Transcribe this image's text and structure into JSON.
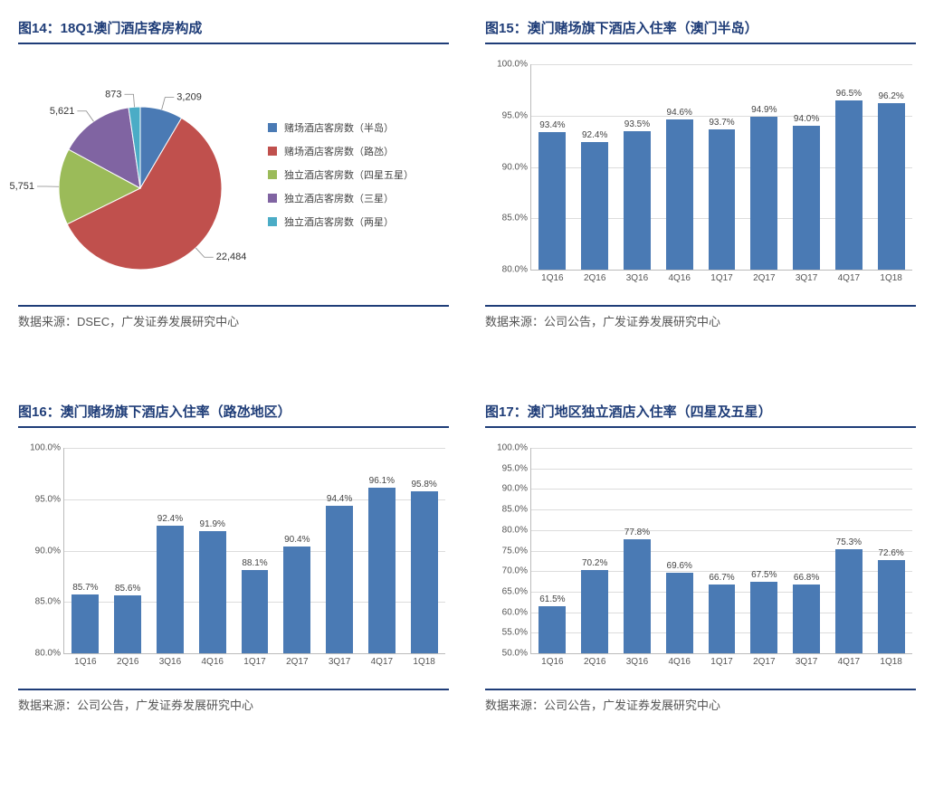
{
  "panels": {
    "p14": {
      "title": "图14：18Q1澳门酒店客房构成",
      "source": "数据来源：DSEC，广发证券发展研究中心",
      "pie": {
        "slices": [
          {
            "label": "赌场酒店客房数（半岛）",
            "value": 3209,
            "value_text": "3,209",
            "color": "#4a7ab4"
          },
          {
            "label": "赌场酒店客房数（路氹）",
            "value": 22484,
            "value_text": "22,484",
            "color": "#c0504d"
          },
          {
            "label": "独立酒店客房数（四星五星）",
            "value": 5751,
            "value_text": "5,751",
            "color": "#9bbb59"
          },
          {
            "label": "独立酒店客房数（三星）",
            "value": 5621,
            "value_text": "5,621",
            "color": "#8064a2"
          },
          {
            "label": "独立酒店客房数（两星）",
            "value": 873,
            "value_text": "873",
            "color": "#4bacc6"
          }
        ],
        "border_color": "#ffffff",
        "label_fontsize": 11
      }
    },
    "p15": {
      "title": "图15：澳门赌场旗下酒店入住率（澳门半岛）",
      "source": "数据来源：公司公告，广发证券发展研究中心",
      "bar": {
        "categories": [
          "1Q16",
          "2Q16",
          "3Q16",
          "4Q16",
          "1Q17",
          "2Q17",
          "3Q17",
          "4Q17",
          "1Q18"
        ],
        "values": [
          93.4,
          92.4,
          93.5,
          94.6,
          93.7,
          94.9,
          94.0,
          96.5,
          96.2
        ],
        "value_texts": [
          "93.4%",
          "92.4%",
          "93.5%",
          "94.6%",
          "93.7%",
          "94.9%",
          "94.0%",
          "96.5%",
          "96.2%"
        ],
        "ymin": 80,
        "ymax": 100,
        "ystep": 5,
        "bar_color": "#4a7ab4",
        "grid_color": "#dcdcdc",
        "axis_color": "#bbbbbb",
        "label_fontsize": 10,
        "y_format_suffix": ".0%"
      }
    },
    "p16": {
      "title": "图16：澳门赌场旗下酒店入住率（路氹地区）",
      "source": "数据来源：公司公告，广发证券发展研究中心",
      "bar": {
        "categories": [
          "1Q16",
          "2Q16",
          "3Q16",
          "4Q16",
          "1Q17",
          "2Q17",
          "3Q17",
          "4Q17",
          "1Q18"
        ],
        "values": [
          85.7,
          85.6,
          92.4,
          91.9,
          88.1,
          90.4,
          94.4,
          96.1,
          95.8
        ],
        "value_texts": [
          "85.7%",
          "85.6%",
          "92.4%",
          "91.9%",
          "88.1%",
          "90.4%",
          "94.4%",
          "96.1%",
          "95.8%"
        ],
        "ymin": 80,
        "ymax": 100,
        "ystep": 5,
        "bar_color": "#4a7ab4",
        "grid_color": "#dcdcdc",
        "axis_color": "#bbbbbb",
        "label_fontsize": 10,
        "y_format_suffix": ".0%"
      }
    },
    "p17": {
      "title": "图17：澳门地区独立酒店入住率（四星及五星）",
      "source": "数据来源：公司公告，广发证券发展研究中心",
      "bar": {
        "categories": [
          "1Q16",
          "2Q16",
          "3Q16",
          "4Q16",
          "1Q17",
          "2Q17",
          "3Q17",
          "4Q17",
          "1Q18"
        ],
        "values": [
          61.5,
          70.2,
          77.8,
          69.6,
          66.7,
          67.5,
          66.8,
          75.3,
          72.6
        ],
        "value_texts": [
          "61.5%",
          "70.2%",
          "77.8%",
          "69.6%",
          "66.7%",
          "67.5%",
          "66.8%",
          "75.3%",
          "72.6%"
        ],
        "ymin": 50,
        "ymax": 100,
        "ystep": 5,
        "bar_color": "#4a7ab4",
        "grid_color": "#dcdcdc",
        "axis_color": "#bbbbbb",
        "label_fontsize": 10,
        "y_format_suffix": ".0%"
      }
    }
  }
}
